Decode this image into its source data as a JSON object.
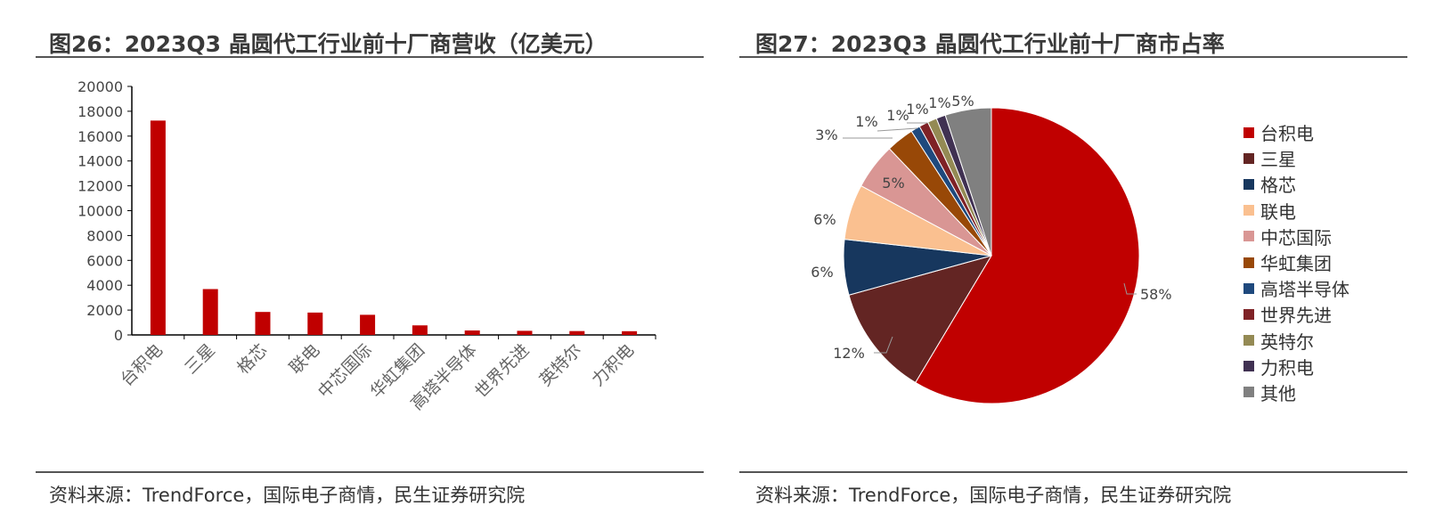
{
  "left_panel": {
    "title": "图26：2023Q3 晶圆代工行业前十厂商营收（亿美元）",
    "source": "资料来源：TrendForce，国际电子商情，民生证券研究院"
  },
  "right_panel": {
    "title": "图27：2023Q3 晶圆代工行业前十厂商市占率",
    "source": "资料来源：TrendForce，国际电子商情，民生证券研究院"
  },
  "chart_data": [
    {
      "type": "bar",
      "title": "图26：2023Q3 晶圆代工行业前十厂商营收（亿美元）",
      "categories": [
        "台积电",
        "三星",
        "格芯",
        "联电",
        "中芯国际",
        "华虹集团",
        "高塔半导体",
        "世界先进",
        "英特尔",
        "力积电"
      ],
      "values": [
        17250,
        3690,
        1850,
        1800,
        1620,
        770,
        360,
        330,
        310,
        300
      ],
      "ylim": [
        0,
        20000
      ],
      "yticks": [
        0,
        2000,
        4000,
        6000,
        8000,
        10000,
        12000,
        14000,
        16000,
        18000,
        20000
      ],
      "ytick_labels": [
        "0",
        "2000",
        "4000",
        "6000",
        "8000",
        "10000",
        "12000",
        "14000",
        "16000",
        "18000",
        "20000"
      ],
      "bar_color": "#c00000",
      "xlabel": "",
      "ylabel": ""
    },
    {
      "type": "pie",
      "title": "图27：2023Q3 晶圆代工行业前十厂商市占率",
      "labels": [
        "台积电",
        "三星",
        "格芯",
        "联电",
        "中芯国际",
        "华虹集团",
        "高塔半导体",
        "世界先进",
        "英特尔",
        "力积电",
        "其他"
      ],
      "values": [
        58,
        12,
        6,
        6,
        5,
        3,
        1,
        1,
        1,
        1,
        5
      ],
      "value_labels": [
        "58%",
        "12%",
        "6%",
        "6%",
        "5%",
        "3%",
        "1%",
        "1%",
        "1%",
        "1%",
        "5%"
      ],
      "colors": [
        "#c00000",
        "#632523",
        "#17375e",
        "#fac090",
        "#d99694",
        "#984807",
        "#1f497d",
        "#7f2226",
        "#948a54",
        "#403152",
        "#808080"
      ],
      "legend_position": "right"
    }
  ]
}
